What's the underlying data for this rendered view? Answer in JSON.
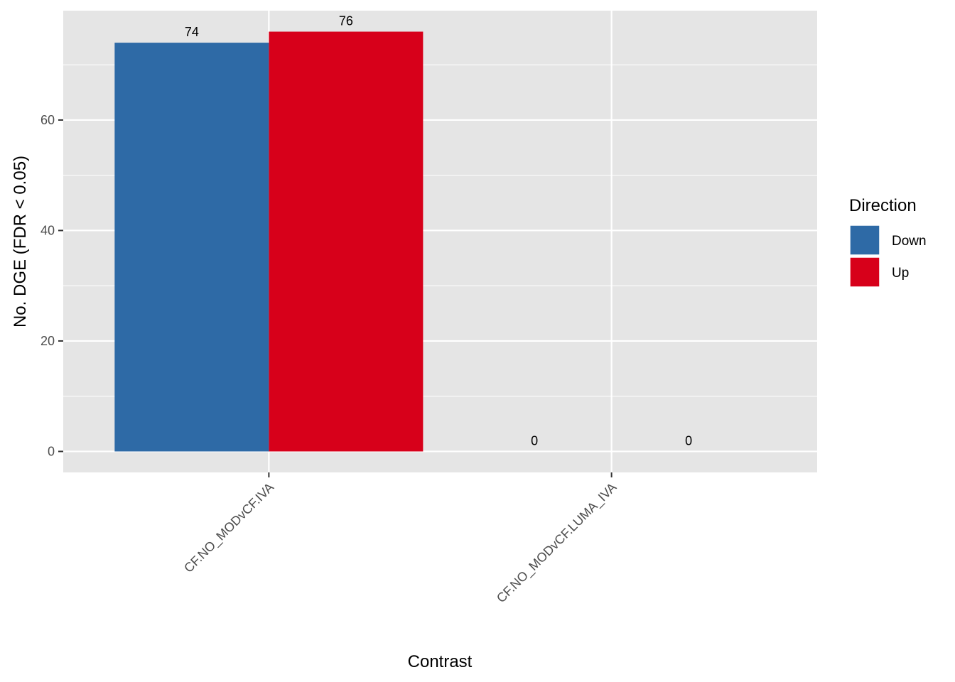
{
  "chart_data": {
    "type": "bar",
    "x_label": "Contrast",
    "y_label": "No. DGE (FDR < 0.05)",
    "categories": [
      "CF.NO_MODvCF.IVA",
      "CF.NO_MODvCF.LUMA_IVA"
    ],
    "series": [
      {
        "name": "Down",
        "color": "#2e6aa6",
        "values": [
          74,
          0
        ]
      },
      {
        "name": "Up",
        "color": "#d7001a",
        "values": [
          76,
          0
        ]
      }
    ],
    "legend_title": "Direction",
    "legend_position": "right",
    "ylim": [
      -3.8,
      79.8
    ],
    "yticks": [
      0,
      20,
      40,
      60
    ],
    "grid": true
  }
}
